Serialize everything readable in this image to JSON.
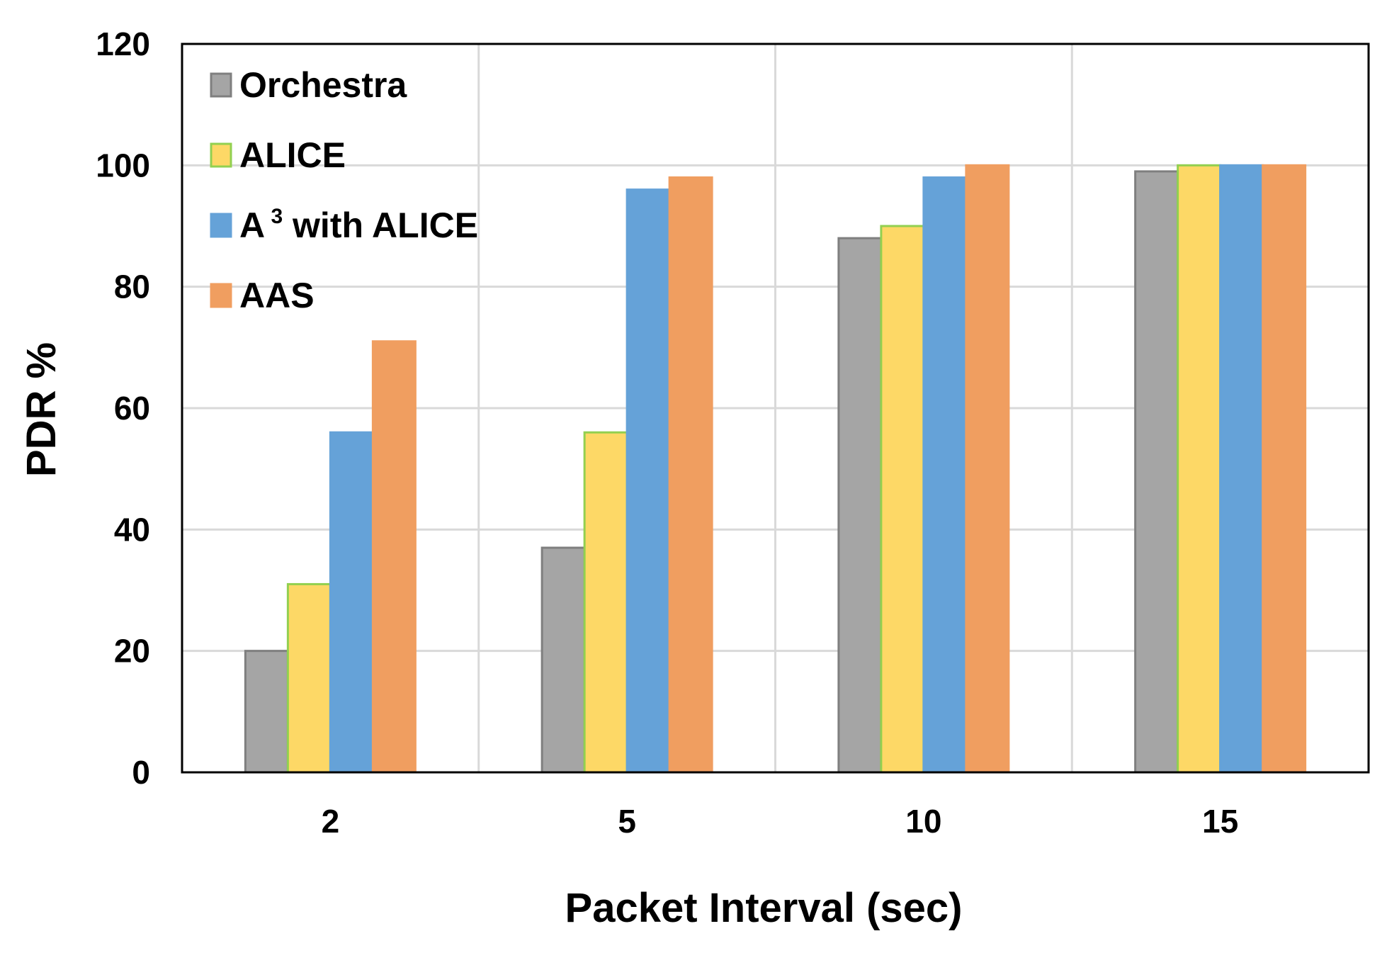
{
  "chart_data": {
    "type": "bar",
    "xlabel": "Packet Interval (sec)",
    "ylabel": "PDR %",
    "ylim": [
      0,
      120
    ],
    "yticks": [
      "0",
      "20",
      "40",
      "60",
      "80",
      "100",
      "120"
    ],
    "categories": [
      "2",
      "5",
      "10",
      "15"
    ],
    "grid": true,
    "legend_position": "top-left",
    "series": [
      {
        "name": "Orchestra",
        "name_base": "Orchestra",
        "name_sup": "",
        "name_rest": "",
        "color": "#a5a5a5",
        "stroke": "#7f7f7f",
        "values": [
          20,
          37,
          88,
          99
        ]
      },
      {
        "name": "ALICE",
        "name_base": "ALICE",
        "name_sup": "",
        "name_rest": "",
        "color": "#fdd866",
        "stroke": "#92d050",
        "values": [
          31,
          56,
          90,
          100
        ]
      },
      {
        "name": "A3 with ALICE",
        "name_base": "A",
        "name_sup": "3",
        "name_rest": " with ALICE",
        "color": "#65a2d8",
        "stroke": "#65a2d8",
        "values": [
          56,
          96,
          98,
          100
        ]
      },
      {
        "name": "AAS",
        "name_base": "AAS",
        "name_sup": "",
        "name_rest": "",
        "color": "#f09e60",
        "stroke": "#f09e60",
        "values": [
          71,
          98,
          100,
          100
        ]
      }
    ]
  }
}
